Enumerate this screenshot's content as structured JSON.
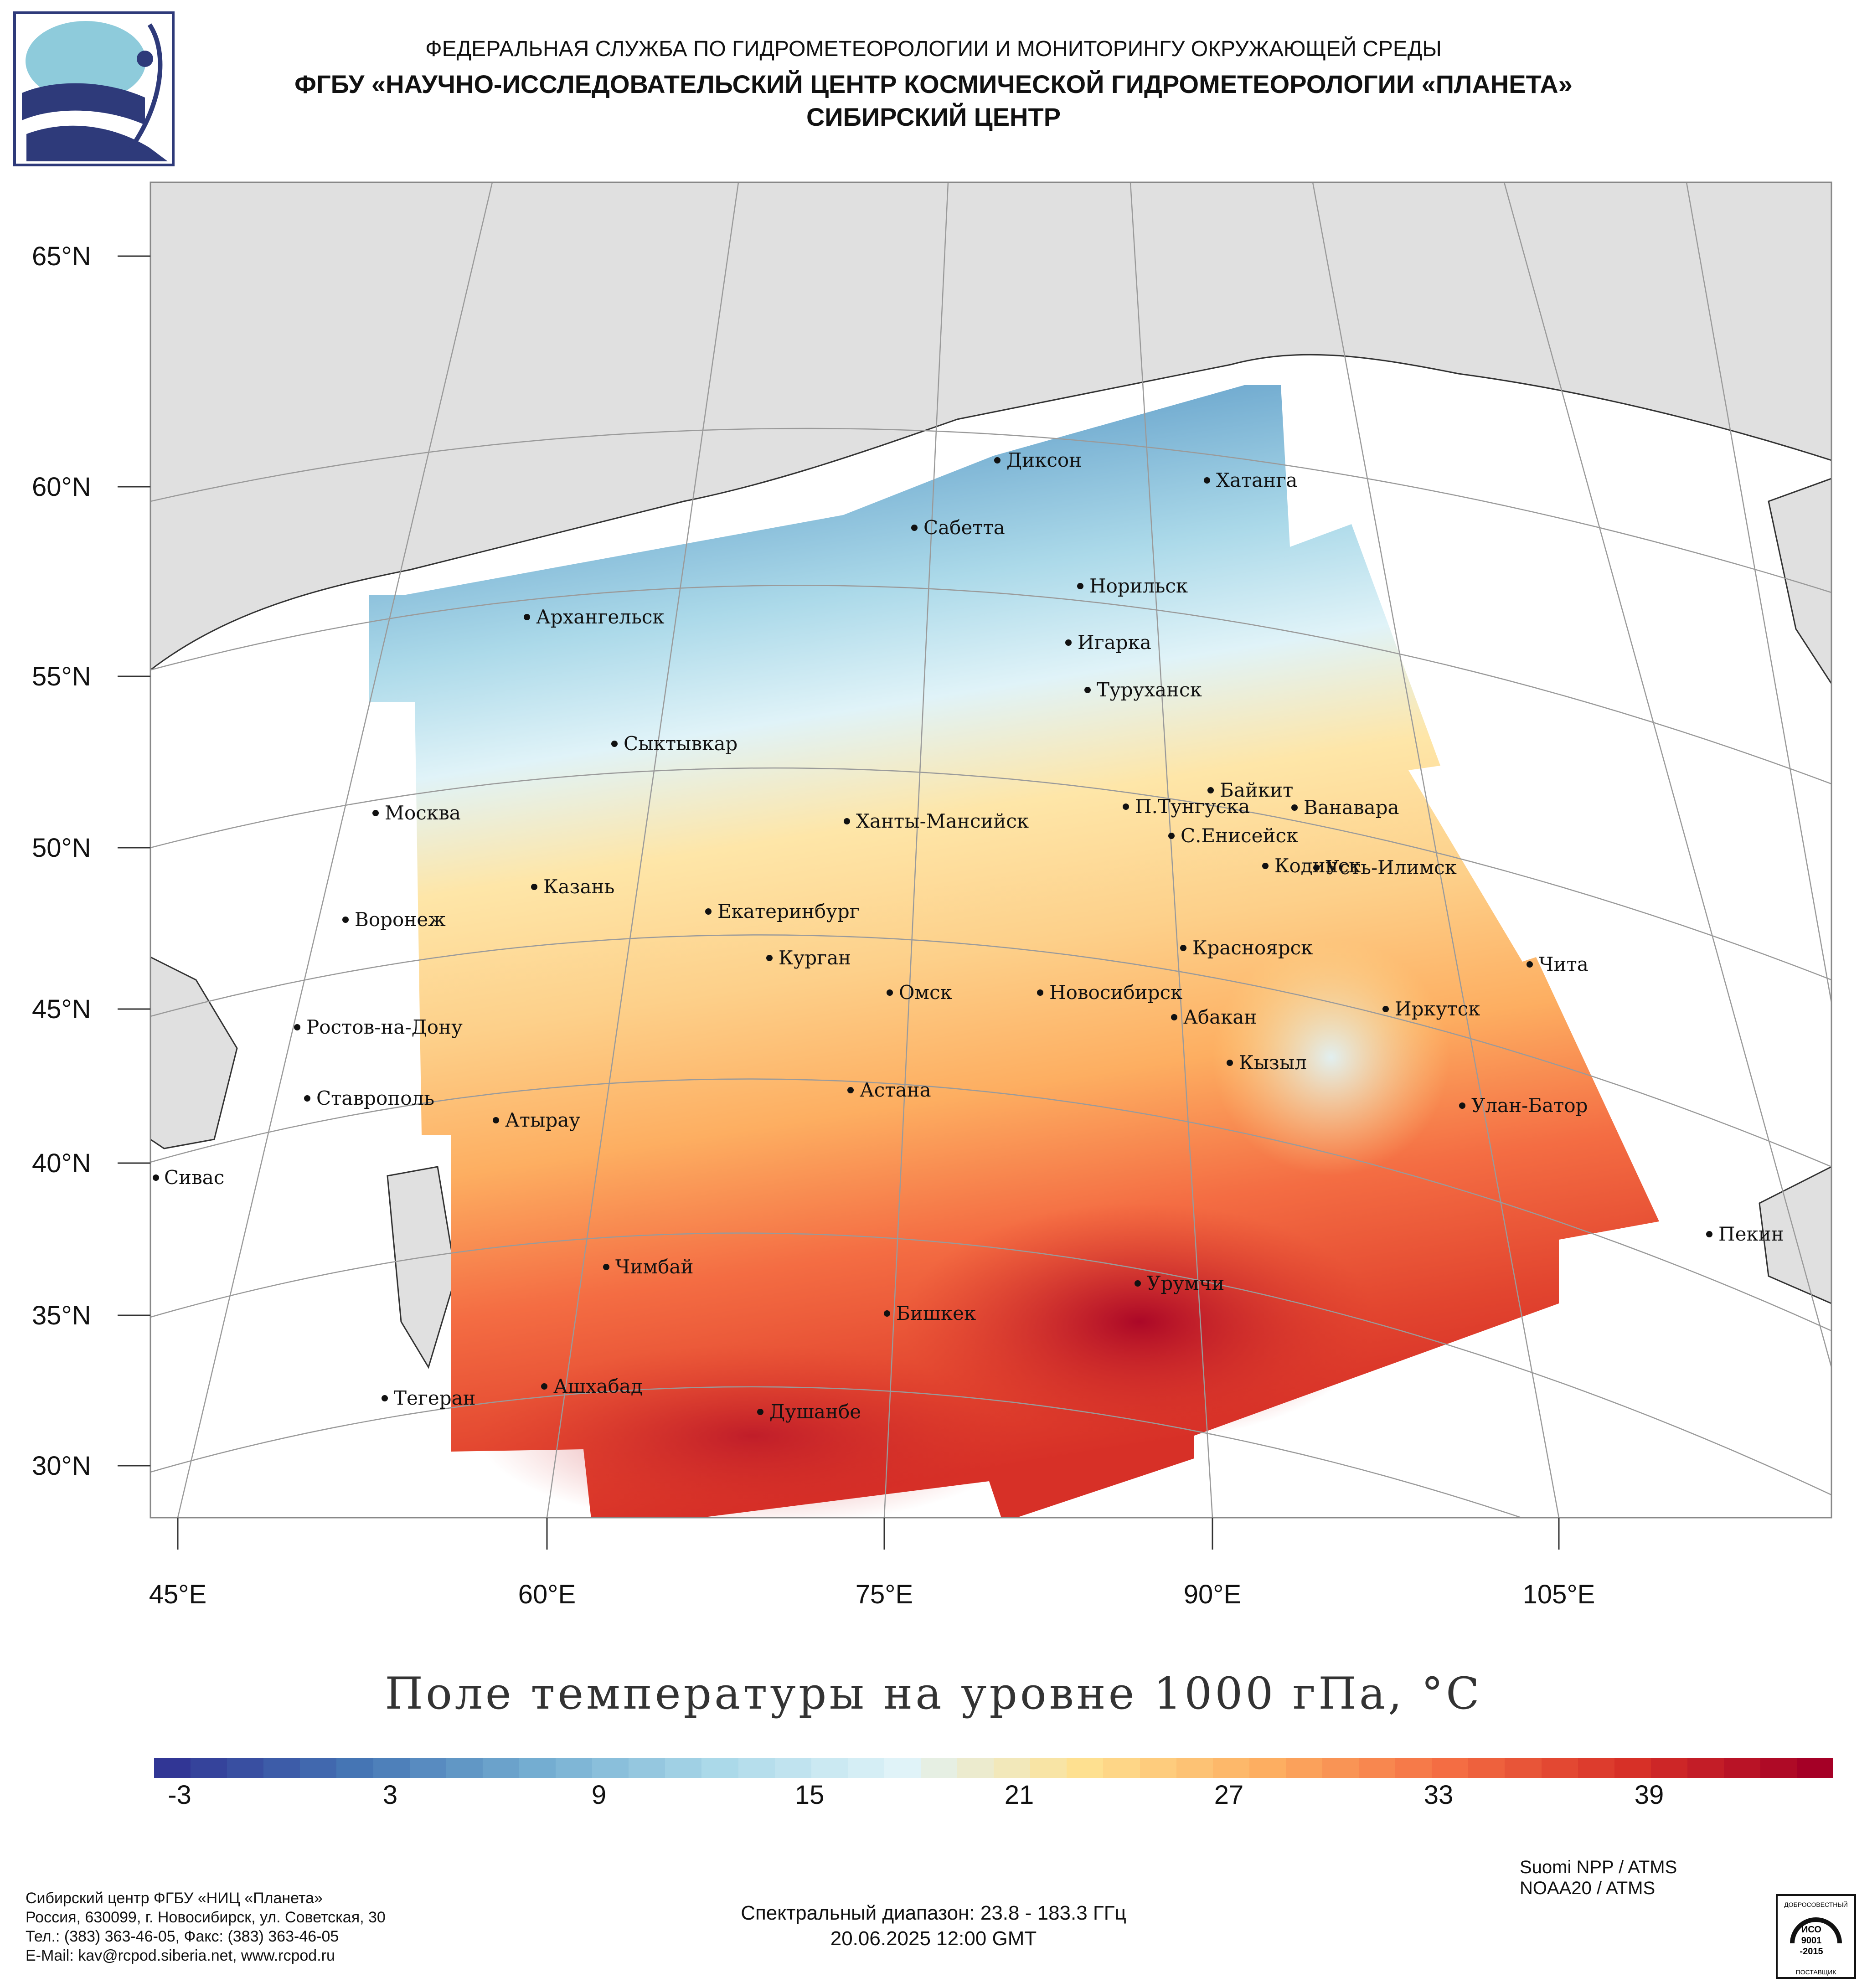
{
  "header": {
    "line1": "ФЕДЕРАЛЬНАЯ СЛУЖБА ПО ГИДРОМЕТЕОРОЛОГИИ И МОНИТОРИНГУ ОКРУЖАЮЩЕЙ СРЕДЫ",
    "line2": "ФГБУ «НАУЧНО-ИССЛЕДОВАТЕЛЬСКИЙ ЦЕНТР КОСМИЧЕСКОЙ ГИДРОМЕТЕОРОЛОГИИ «ПЛАНЕТА»",
    "line3": "СИБИРСКИЙ ЦЕНТР"
  },
  "map": {
    "lat_labels": [
      "65°N",
      "60°N",
      "55°N",
      "50°N",
      "45°N",
      "40°N",
      "35°N",
      "30°N"
    ],
    "lon_labels": [
      "45°E",
      "60°E",
      "75°E",
      "90°E",
      "105°E"
    ],
    "cities": [
      {
        "name": "Диксон"
      },
      {
        "name": "Хатанга"
      },
      {
        "name": "Сабетта"
      },
      {
        "name": "Норильск"
      },
      {
        "name": "Архангельск"
      },
      {
        "name": "Игарка"
      },
      {
        "name": "Туруханск"
      },
      {
        "name": "Сыктывкар"
      },
      {
        "name": "Байкит"
      },
      {
        "name": "П.Тунгуска"
      },
      {
        "name": "Ванавара"
      },
      {
        "name": "Москва"
      },
      {
        "name": "Ханты-Мансийск"
      },
      {
        "name": "С.Енисейск"
      },
      {
        "name": "Кодинск"
      },
      {
        "name": "Усть-Илимск"
      },
      {
        "name": "Казань"
      },
      {
        "name": "Екатеринбург"
      },
      {
        "name": "Воронеж"
      },
      {
        "name": "Курган"
      },
      {
        "name": "Красноярск"
      },
      {
        "name": "Чита"
      },
      {
        "name": "Омск"
      },
      {
        "name": "Новосибирск"
      },
      {
        "name": "Иркутск"
      },
      {
        "name": "Абакан"
      },
      {
        "name": "Ростов-на-Дону"
      },
      {
        "name": "Кызыл"
      },
      {
        "name": "Астана"
      },
      {
        "name": "Ставрополь"
      },
      {
        "name": "Улан-Батор"
      },
      {
        "name": "Атырау"
      },
      {
        "name": "Сивас"
      },
      {
        "name": "Пекин"
      },
      {
        "name": "Чимбай"
      },
      {
        "name": "Урумчи"
      },
      {
        "name": "Бишкек"
      },
      {
        "name": "Ашхабад"
      },
      {
        "name": "Тегеран"
      },
      {
        "name": "Душанбе"
      }
    ],
    "colors": {
      "land": "#e0e0e0",
      "water": "#ffffff",
      "grid": "#9a9a9a",
      "coast": "#333333"
    }
  },
  "title": "Поле температуры на уровне 1000 гПа, °C",
  "colorbar": {
    "ticks": [
      "-3",
      "3",
      "9",
      "15",
      "21",
      "27",
      "33",
      "39"
    ],
    "colors": [
      "#313695",
      "#4575b4",
      "#74add1",
      "#abd9e9",
      "#e0f3f8",
      "#fee090",
      "#fdae61",
      "#f46d43",
      "#d73027",
      "#a50026"
    ]
  },
  "footer": {
    "address": [
      "Сибирский центр ФГБУ «НИЦ «Планета»",
      "Россия, 630099, г. Новосибирск, ул. Советская, 30",
      "Тел.: (383) 363-46-05, Факс: (383) 363-46-05",
      "E-Mail: kav@rcpod.siberia.net, www.rcpod.ru"
    ],
    "satellites": [
      "Suomi NPP / ATMS",
      "NOAA20 / ATMS"
    ],
    "spectral": "Спектральный диапазон: 23.8 - 183.3 ГГц",
    "datetime": "20.06.2025 12:00 GMT",
    "iso_top": "ДОБРОСОВЕСТНЫЙ",
    "iso_mid1": "ИСО",
    "iso_mid2": "9001",
    "iso_mid3": "-2015",
    "iso_bot": "ПОСТАВЩИК"
  }
}
